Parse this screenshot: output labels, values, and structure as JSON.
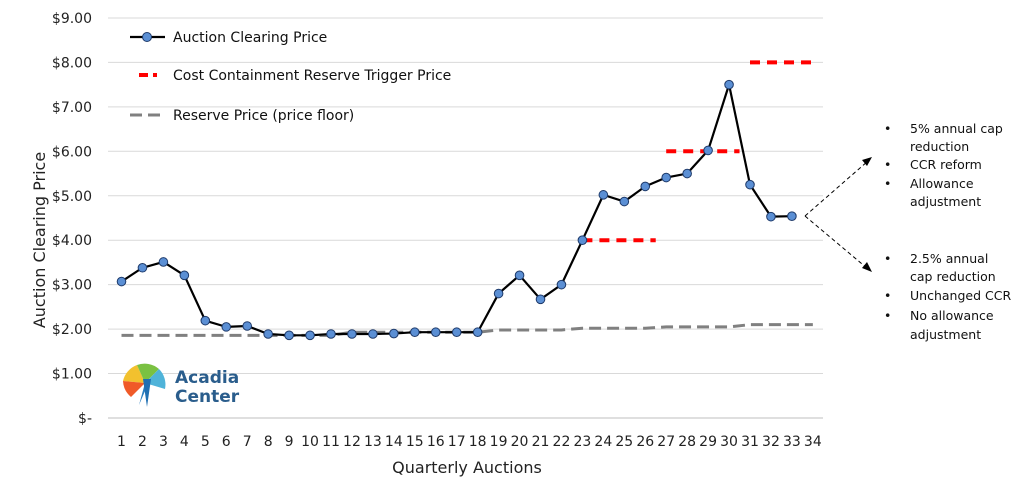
{
  "chart_data": {
    "type": "line",
    "xlabel": "Quarterly Auctions",
    "ylabel": "Auction Clearing Price",
    "ylim": [
      0,
      9
    ],
    "xlim": [
      1,
      34
    ],
    "y_ticks": [
      0,
      1,
      2,
      3,
      4,
      5,
      6,
      7,
      8,
      9
    ],
    "y_tick_labels": [
      "$-",
      "$1.00",
      "$2.00",
      "$3.00",
      "$4.00",
      "$5.00",
      "$6.00",
      "$7.00",
      "$8.00",
      "$9.00"
    ],
    "x_ticks": [
      1,
      2,
      3,
      4,
      5,
      6,
      7,
      8,
      9,
      10,
      11,
      12,
      13,
      14,
      15,
      16,
      17,
      18,
      19,
      20,
      21,
      22,
      23,
      24,
      25,
      26,
      27,
      28,
      29,
      30,
      31,
      32,
      33,
      34
    ],
    "grid": "horizontal",
    "legend_position": "top-left",
    "series": [
      {
        "name": "Auction Clearing Price",
        "style": "line-markers",
        "color": "#000000",
        "marker_color": "#5b8fd4",
        "x": [
          1,
          2,
          3,
          4,
          5,
          6,
          7,
          8,
          9,
          10,
          11,
          12,
          13,
          14,
          15,
          16,
          17,
          18,
          19,
          20,
          21,
          22,
          23,
          24,
          25,
          26,
          27,
          28,
          29,
          30,
          31,
          32,
          33
        ],
        "values": [
          3.07,
          3.38,
          3.51,
          3.21,
          2.19,
          2.05,
          2.07,
          1.89,
          1.86,
          1.86,
          1.89,
          1.89,
          1.89,
          1.9,
          1.93,
          1.93,
          1.93,
          1.93,
          2.8,
          3.21,
          2.67,
          3.0,
          4.0,
          5.02,
          4.87,
          5.21,
          5.41,
          5.5,
          6.02,
          7.5,
          5.25,
          4.53,
          4.54
        ]
      },
      {
        "name": "Cost Containment Reserve Trigger Price",
        "style": "dashed",
        "color": "#ff0000",
        "segments": [
          {
            "x": [
              23,
              26.5
            ],
            "y": 4.0
          },
          {
            "x": [
              27,
              30.5
            ],
            "y": 6.0
          },
          {
            "x": [
              31,
              34
            ],
            "y": 8.0
          }
        ]
      },
      {
        "name": "Reserve Price (price floor)",
        "style": "dashed",
        "color": "#808080",
        "x": [
          1,
          2,
          3,
          4,
          5,
          6,
          7,
          8,
          9,
          10,
          11,
          12,
          13,
          14,
          15,
          16,
          17,
          18,
          19,
          20,
          21,
          22,
          23,
          24,
          25,
          26,
          27,
          28,
          29,
          30,
          31,
          32,
          33,
          34
        ],
        "values": [
          1.86,
          1.86,
          1.86,
          1.86,
          1.86,
          1.86,
          1.86,
          1.86,
          1.86,
          1.86,
          1.86,
          1.93,
          1.93,
          1.93,
          1.93,
          1.93,
          1.93,
          1.93,
          1.98,
          1.98,
          1.98,
          1.98,
          2.02,
          2.02,
          2.02,
          2.02,
          2.05,
          2.05,
          2.05,
          2.05,
          2.1,
          2.1,
          2.1,
          2.1
        ]
      }
    ],
    "annotations": {
      "upper_bullets": [
        "5% annual cap reduction",
        "CCR reform",
        "Allowance adjustment"
      ],
      "lower_bullets": [
        "2.5% annual cap reduction",
        "Unchanged CCR",
        "No allowance adjustment"
      ]
    },
    "logo": {
      "line1": "Acadia",
      "line2": "Center"
    }
  }
}
